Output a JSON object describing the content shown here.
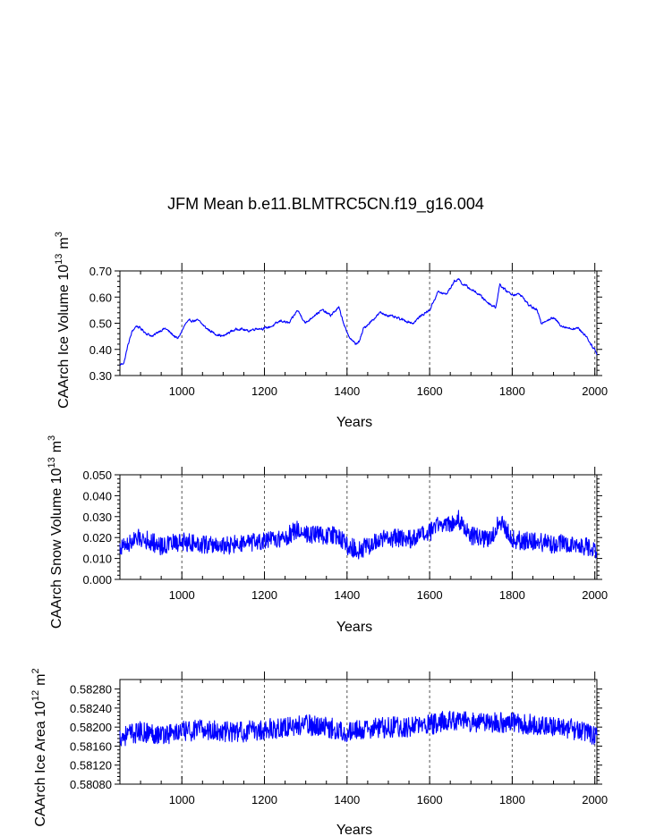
{
  "chart_data": [
    {
      "type": "line",
      "title": "JFM Mean b.e11.BLMTRC5CN.f19_g16.004",
      "ylabel": "CAArch Ice Volume 10",
      "ylabel_exp": "13",
      "ylabel_unit": "m",
      "ylabel_unit_exp": "3",
      "xlabel": "Years",
      "xlim": [
        850,
        2005
      ],
      "ylim": [
        0.3,
        0.7
      ],
      "xticks": [
        1000,
        1200,
        1400,
        1600,
        1800,
        2000
      ],
      "ytick_values": [
        0.3,
        0.4,
        0.5,
        0.6,
        0.7
      ],
      "ytick_labels": [
        "0.30",
        "0.40",
        "0.50",
        "0.60",
        "0.70"
      ],
      "color": "#0000ff",
      "series": [
        {
          "name": "CAArch Ice Volume",
          "x": [
            850,
            860,
            870,
            880,
            890,
            900,
            915,
            930,
            945,
            960,
            975,
            990,
            1000,
            1010,
            1020,
            1040,
            1060,
            1080,
            1100,
            1120,
            1140,
            1160,
            1180,
            1200,
            1220,
            1240,
            1260,
            1280,
            1300,
            1320,
            1340,
            1360,
            1380,
            1390,
            1400,
            1420,
            1430,
            1440,
            1460,
            1480,
            1500,
            1520,
            1540,
            1560,
            1580,
            1600,
            1620,
            1640,
            1660,
            1670,
            1680,
            1700,
            1720,
            1740,
            1760,
            1770,
            1780,
            1800,
            1820,
            1840,
            1860,
            1870,
            1880,
            1900,
            1920,
            1940,
            1960,
            1980,
            1990,
            2000,
            2005
          ],
          "values": [
            0.34,
            0.35,
            0.42,
            0.47,
            0.49,
            0.48,
            0.46,
            0.45,
            0.47,
            0.48,
            0.46,
            0.44,
            0.47,
            0.5,
            0.51,
            0.51,
            0.48,
            0.46,
            0.45,
            0.47,
            0.48,
            0.47,
            0.48,
            0.48,
            0.49,
            0.51,
            0.5,
            0.55,
            0.5,
            0.53,
            0.55,
            0.53,
            0.56,
            0.51,
            0.46,
            0.42,
            0.43,
            0.48,
            0.51,
            0.54,
            0.53,
            0.52,
            0.51,
            0.5,
            0.53,
            0.55,
            0.62,
            0.61,
            0.66,
            0.67,
            0.65,
            0.63,
            0.61,
            0.58,
            0.56,
            0.65,
            0.63,
            0.61,
            0.61,
            0.57,
            0.55,
            0.5,
            0.51,
            0.52,
            0.49,
            0.48,
            0.48,
            0.45,
            0.42,
            0.4,
            0.38
          ]
        }
      ],
      "noise": 0.008
    },
    {
      "type": "line",
      "ylabel": "CAArch Snow Volume 10",
      "ylabel_exp": "13",
      "ylabel_unit": "m",
      "ylabel_unit_exp": "3",
      "xlabel": "Years",
      "xlim": [
        850,
        2005
      ],
      "ylim": [
        0.0,
        0.05
      ],
      "xticks": [
        1000,
        1200,
        1400,
        1600,
        1800,
        2000
      ],
      "ytick_values": [
        0.0,
        0.01,
        0.02,
        0.03,
        0.04,
        0.05
      ],
      "ytick_labels": [
        "0.000",
        "0.010",
        "0.020",
        "0.030",
        "0.040",
        "0.050"
      ],
      "color": "#0000ff",
      "series": [
        {
          "name": "CAArch Snow Volume",
          "x": [
            850,
            900,
            950,
            1000,
            1050,
            1100,
            1150,
            1200,
            1250,
            1280,
            1300,
            1350,
            1380,
            1400,
            1430,
            1460,
            1500,
            1550,
            1600,
            1620,
            1650,
            1665,
            1700,
            1750,
            1770,
            1800,
            1850,
            1900,
            1950,
            2005
          ],
          "values": [
            0.015,
            0.02,
            0.016,
            0.018,
            0.017,
            0.016,
            0.017,
            0.018,
            0.02,
            0.024,
            0.022,
            0.021,
            0.021,
            0.016,
            0.014,
            0.017,
            0.02,
            0.019,
            0.022,
            0.027,
            0.026,
            0.03,
            0.021,
            0.019,
            0.029,
            0.019,
            0.018,
            0.017,
            0.017,
            0.014
          ]
        }
      ],
      "noise": 0.0045
    },
    {
      "type": "line",
      "ylabel": "CAArch Ice Area 10",
      "ylabel_exp": "12",
      "ylabel_unit": "m",
      "ylabel_unit_exp": "2",
      "xlabel": "Years",
      "xlim": [
        850,
        2005
      ],
      "ylim": [
        0.5808,
        0.583
      ],
      "xticks": [
        1000,
        1200,
        1400,
        1600,
        1800,
        2000
      ],
      "ytick_values": [
        0.5808,
        0.5812,
        0.5816,
        0.582,
        0.5824,
        0.5828
      ],
      "ytick_labels": [
        "0.58080",
        "0.58120",
        "0.58160",
        "0.58200",
        "0.58240",
        "0.58280"
      ],
      "color": "#0000ff",
      "series": [
        {
          "name": "CAArch Ice Area",
          "x": [
            850,
            900,
            950,
            1000,
            1050,
            1100,
            1150,
            1200,
            1250,
            1300,
            1350,
            1400,
            1450,
            1500,
            1550,
            1600,
            1650,
            1700,
            1750,
            1800,
            1850,
            1900,
            1950,
            2005
          ],
          "values": [
            0.5818,
            0.5819,
            0.58185,
            0.5819,
            0.58195,
            0.5819,
            0.5819,
            0.58195,
            0.582,
            0.58205,
            0.582,
            0.5819,
            0.58195,
            0.582,
            0.582,
            0.58205,
            0.58215,
            0.5821,
            0.5821,
            0.5821,
            0.58205,
            0.582,
            0.58195,
            0.5818
          ]
        }
      ],
      "noise": 0.00022
    }
  ]
}
